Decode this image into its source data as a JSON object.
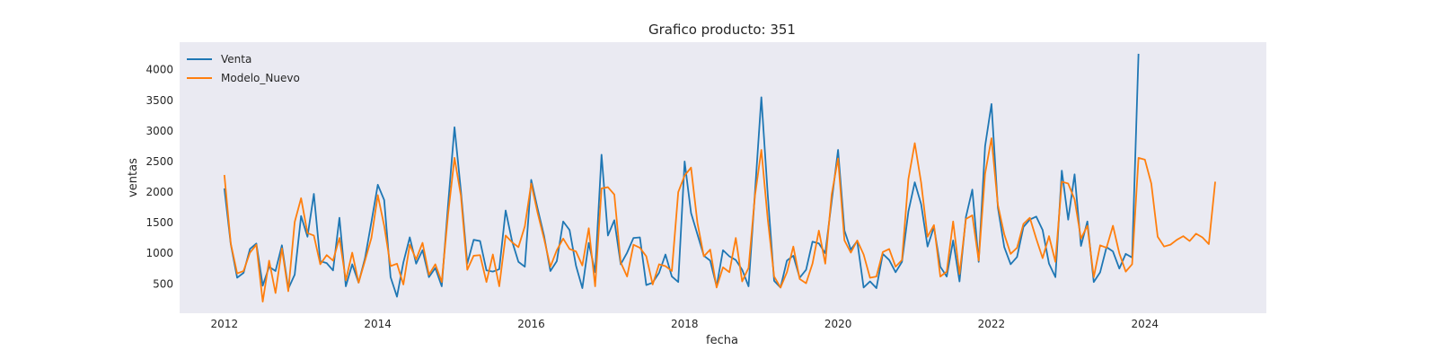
{
  "chart_data": {
    "type": "line",
    "title": "Grafico producto: 351",
    "xlabel": "fecha",
    "ylabel": "ventas",
    "xlim": [
      "2011-06-01",
      "2025-08-01"
    ],
    "ylim": [
      20,
      4450
    ],
    "x_ticks": [
      "2012",
      "2014",
      "2016",
      "2018",
      "2020",
      "2022",
      "2024"
    ],
    "y_ticks": [
      500,
      1000,
      1500,
      2000,
      2500,
      3000,
      3500,
      4000
    ],
    "grid": false,
    "legend_position": "top-left",
    "colors": {
      "Venta": "#1f77b4",
      "Modelo_Nuevo": "#ff7f0e",
      "plot_bg": "#eaeaf2"
    },
    "series": [
      {
        "name": "Venta",
        "start": "2012-01",
        "frequency": "monthly",
        "values": [
          2060,
          1150,
          600,
          680,
          1070,
          1160,
          470,
          780,
          710,
          1130,
          420,
          650,
          1610,
          1270,
          1970,
          870,
          840,
          720,
          1580,
          460,
          820,
          520,
          920,
          1510,
          2120,
          1870,
          610,
          290,
          850,
          1260,
          830,
          1050,
          610,
          760,
          460,
          1800,
          3060,
          2020,
          830,
          1220,
          1200,
          720,
          700,
          740,
          1700,
          1200,
          860,
          780,
          2200,
          1730,
          1290,
          710,
          870,
          1520,
          1380,
          800,
          430,
          1170,
          690,
          2610,
          1290,
          1540,
          820,
          1010,
          1250,
          1260,
          480,
          520,
          680,
          980,
          620,
          530,
          2500,
          1660,
          1310,
          960,
          880,
          460,
          1050,
          950,
          890,
          730,
          460,
          1990,
          3550,
          1960,
          550,
          440,
          880,
          960,
          600,
          730,
          1190,
          1160,
          1000,
          1850,
          2690,
          1370,
          1060,
          1200,
          440,
          540,
          430,
          990,
          890,
          690,
          860,
          1680,
          2160,
          1800,
          1110,
          1430,
          780,
          620,
          1210,
          540,
          1590,
          2040,
          860,
          2750,
          3440,
          1750,
          1100,
          820,
          940,
          1430,
          1550,
          1600,
          1380,
          830,
          610,
          2350,
          1550,
          2290,
          1120,
          1520,
          530,
          690,
          1100,
          1030,
          750,
          990,
          930,
          4260
        ]
      },
      {
        "name": "Modelo_Nuevo",
        "start": "2012-01",
        "frequency": "monthly",
        "values": [
          2280,
          1160,
          670,
          710,
          1010,
          1140,
          210,
          880,
          350,
          1080,
          380,
          1510,
          1900,
          1330,
          1290,
          820,
          970,
          880,
          1250,
          560,
          1010,
          520,
          880,
          1250,
          1950,
          1450,
          790,
          830,
          490,
          1140,
          900,
          1170,
          650,
          820,
          530,
          1640,
          2560,
          1940,
          730,
          960,
          970,
          530,
          980,
          460,
          1290,
          1180,
          1100,
          1440,
          2140,
          1660,
          1240,
          780,
          1050,
          1240,
          1070,
          1030,
          800,
          1410,
          460,
          2060,
          2080,
          1960,
          850,
          620,
          1140,
          1090,
          950,
          490,
          820,
          790,
          710,
          2000,
          2270,
          2400,
          1500,
          950,
          1060,
          440,
          770,
          690,
          1250,
          540,
          760,
          1940,
          2690,
          1560,
          620,
          440,
          690,
          1110,
          580,
          510,
          830,
          1370,
          830,
          1960,
          2550,
          1210,
          1010,
          1210,
          980,
          600,
          620,
          1020,
          1070,
          780,
          890,
          2210,
          2800,
          2150,
          1270,
          1460,
          620,
          700,
          1520,
          660,
          1560,
          1620,
          880,
          2300,
          2880,
          1790,
          1310,
          990,
          1090,
          1480,
          1580,
          1240,
          920,
          1280,
          860,
          2170,
          2140,
          1880,
          1240,
          1450,
          610,
          1130,
          1090,
          1450,
          1000,
          700,
          820,
          2560,
          2530,
          2140,
          1270,
          1110,
          1140,
          1220,
          1280,
          1200,
          1320,
          1260,
          1150,
          2170
        ]
      }
    ]
  }
}
